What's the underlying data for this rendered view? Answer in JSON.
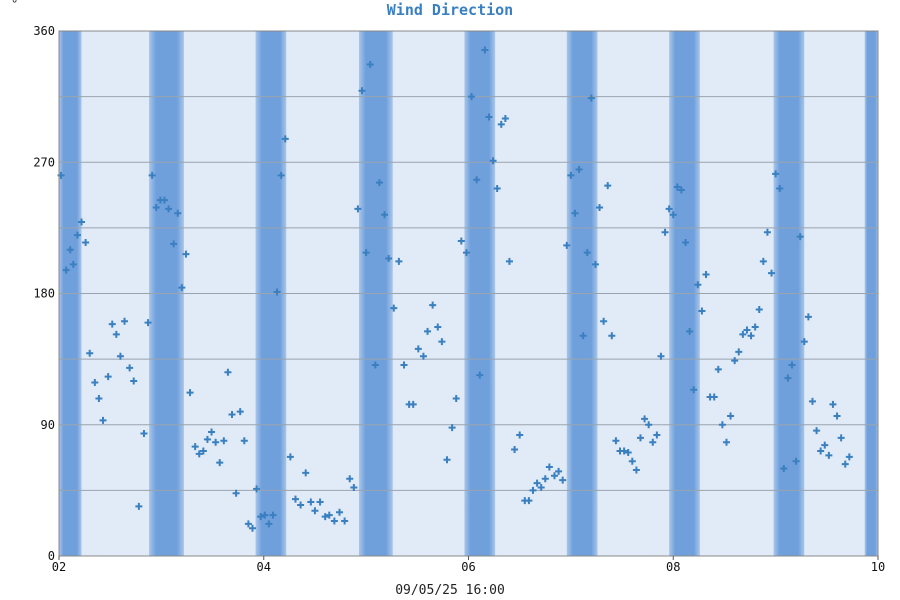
{
  "corner_mark": "°",
  "chart_data": {
    "type": "scatter",
    "title": "Wind Direction",
    "xlabel": "09/05/25 16:00",
    "ylabel": "",
    "xlim": [
      2,
      10
    ],
    "ylim": [
      0,
      360
    ],
    "x_tick_labels": [
      "02",
      "04",
      "06",
      "08",
      "10"
    ],
    "x_tick_values": [
      2,
      4,
      6,
      8,
      10
    ],
    "y_tick_labels": [
      "0",
      "90",
      "180",
      "270",
      "360"
    ],
    "y_tick_values": [
      0,
      90,
      180,
      270,
      360
    ],
    "y_gridlines": [
      45,
      90,
      135,
      180,
      225,
      270,
      315
    ],
    "grid": true,
    "marker": "+",
    "colors": {
      "background": "#e0ebf7",
      "night_band": "#6fa0dc",
      "marker": "#3a7fc0",
      "grid": "#9aa4ae",
      "title": "#3a7fc0"
    },
    "night_bands": [
      [
        1.97,
        2.22
      ],
      [
        2.88,
        3.22
      ],
      [
        3.92,
        4.22
      ],
      [
        4.93,
        5.26
      ],
      [
        5.96,
        6.26
      ],
      [
        6.96,
        7.26
      ],
      [
        7.96,
        8.26
      ],
      [
        8.98,
        9.28
      ],
      [
        9.87,
        10.02
      ]
    ],
    "series": [
      {
        "values": [
          [
            2.02,
            261
          ],
          [
            2.07,
            196
          ],
          [
            2.11,
            210
          ],
          [
            2.14,
            200
          ],
          [
            2.18,
            220
          ],
          [
            2.22,
            229
          ],
          [
            2.26,
            215
          ],
          [
            2.3,
            139
          ],
          [
            2.35,
            119
          ],
          [
            2.39,
            108
          ],
          [
            2.43,
            93
          ],
          [
            2.48,
            123
          ],
          [
            2.52,
            159
          ],
          [
            2.56,
            152
          ],
          [
            2.6,
            137
          ],
          [
            2.64,
            161
          ],
          [
            2.69,
            129
          ],
          [
            2.73,
            120
          ],
          [
            2.78,
            34
          ],
          [
            2.83,
            84
          ],
          [
            2.87,
            160
          ],
          [
            2.91,
            261
          ],
          [
            2.95,
            239
          ],
          [
            2.99,
            244
          ],
          [
            3.03,
            244
          ],
          [
            3.07,
            238
          ],
          [
            3.12,
            214
          ],
          [
            3.16,
            235
          ],
          [
            3.2,
            184
          ],
          [
            3.24,
            207
          ],
          [
            3.28,
            112
          ],
          [
            3.33,
            75
          ],
          [
            3.37,
            70
          ],
          [
            3.41,
            72
          ],
          [
            3.45,
            80
          ],
          [
            3.49,
            85
          ],
          [
            3.53,
            78
          ],
          [
            3.57,
            64
          ],
          [
            3.61,
            79
          ],
          [
            3.65,
            126
          ],
          [
            3.69,
            97
          ],
          [
            3.73,
            43
          ],
          [
            3.77,
            99
          ],
          [
            3.81,
            79
          ],
          [
            3.85,
            22
          ],
          [
            3.89,
            19
          ],
          [
            3.93,
            46
          ],
          [
            3.97,
            27
          ],
          [
            4.01,
            28
          ],
          [
            4.05,
            22
          ],
          [
            4.09,
            28
          ],
          [
            4.13,
            181
          ],
          [
            4.17,
            261
          ],
          [
            4.21,
            286
          ],
          [
            4.26,
            68
          ],
          [
            4.31,
            39
          ],
          [
            4.36,
            35
          ],
          [
            4.41,
            57
          ],
          [
            4.46,
            37
          ],
          [
            4.5,
            31
          ],
          [
            4.55,
            37
          ],
          [
            4.6,
            27
          ],
          [
            4.64,
            28
          ],
          [
            4.69,
            24
          ],
          [
            4.74,
            30
          ],
          [
            4.79,
            24
          ],
          [
            4.84,
            53
          ],
          [
            4.88,
            47
          ],
          [
            4.92,
            238
          ],
          [
            4.96,
            319
          ],
          [
            5.0,
            208
          ],
          [
            5.04,
            337
          ],
          [
            5.09,
            131
          ],
          [
            5.13,
            256
          ],
          [
            5.18,
            234
          ],
          [
            5.22,
            204
          ],
          [
            5.27,
            170
          ],
          [
            5.32,
            202
          ],
          [
            5.37,
            131
          ],
          [
            5.42,
            104
          ],
          [
            5.46,
            104
          ],
          [
            5.51,
            142
          ],
          [
            5.56,
            137
          ],
          [
            5.6,
            154
          ],
          [
            5.65,
            172
          ],
          [
            5.7,
            157
          ],
          [
            5.74,
            147
          ],
          [
            5.79,
            66
          ],
          [
            5.84,
            88
          ],
          [
            5.88,
            108
          ],
          [
            5.93,
            216
          ],
          [
            5.98,
            208
          ],
          [
            6.03,
            315
          ],
          [
            6.08,
            258
          ],
          [
            6.11,
            124
          ],
          [
            6.16,
            347
          ],
          [
            6.2,
            301
          ],
          [
            6.24,
            271
          ],
          [
            6.28,
            252
          ],
          [
            6.32,
            296
          ],
          [
            6.36,
            300
          ],
          [
            6.4,
            202
          ],
          [
            6.45,
            73
          ],
          [
            6.5,
            83
          ],
          [
            6.55,
            38
          ],
          [
            6.59,
            38
          ],
          [
            6.63,
            45
          ],
          [
            6.67,
            50
          ],
          [
            6.71,
            47
          ],
          [
            6.75,
            53
          ],
          [
            6.79,
            61
          ],
          [
            6.84,
            55
          ],
          [
            6.88,
            58
          ],
          [
            6.92,
            52
          ],
          [
            6.96,
            213
          ],
          [
            7.0,
            261
          ],
          [
            7.04,
            235
          ],
          [
            7.08,
            265
          ],
          [
            7.12,
            151
          ],
          [
            7.16,
            208
          ],
          [
            7.2,
            314
          ],
          [
            7.24,
            200
          ],
          [
            7.28,
            239
          ],
          [
            7.32,
            161
          ],
          [
            7.36,
            254
          ],
          [
            7.4,
            151
          ],
          [
            7.44,
            79
          ],
          [
            7.48,
            72
          ],
          [
            7.52,
            72
          ],
          [
            7.56,
            71
          ],
          [
            7.6,
            65
          ],
          [
            7.64,
            59
          ],
          [
            7.68,
            81
          ],
          [
            7.72,
            94
          ],
          [
            7.76,
            90
          ],
          [
            7.8,
            78
          ],
          [
            7.84,
            83
          ],
          [
            7.88,
            137
          ],
          [
            7.92,
            222
          ],
          [
            7.96,
            238
          ],
          [
            8.0,
            234
          ],
          [
            8.04,
            253
          ],
          [
            8.08,
            251
          ],
          [
            8.12,
            215
          ],
          [
            8.16,
            154
          ],
          [
            8.2,
            114
          ],
          [
            8.24,
            186
          ],
          [
            8.28,
            168
          ],
          [
            8.32,
            193
          ],
          [
            8.36,
            109
          ],
          [
            8.4,
            109
          ],
          [
            8.44,
            128
          ],
          [
            8.48,
            90
          ],
          [
            8.52,
            78
          ],
          [
            8.56,
            96
          ],
          [
            8.6,
            134
          ],
          [
            8.64,
            140
          ],
          [
            8.68,
            152
          ],
          [
            8.72,
            155
          ],
          [
            8.76,
            151
          ],
          [
            8.8,
            157
          ],
          [
            8.84,
            169
          ],
          [
            8.88,
            202
          ],
          [
            8.92,
            222
          ],
          [
            8.96,
            194
          ],
          [
            9.0,
            262
          ],
          [
            9.04,
            252
          ],
          [
            9.08,
            60
          ],
          [
            9.12,
            122
          ],
          [
            9.16,
            131
          ],
          [
            9.2,
            65
          ],
          [
            9.24,
            219
          ],
          [
            9.28,
            147
          ],
          [
            9.32,
            164
          ],
          [
            9.36,
            106
          ],
          [
            9.4,
            86
          ],
          [
            9.44,
            72
          ],
          [
            9.48,
            76
          ],
          [
            9.52,
            69
          ],
          [
            9.56,
            104
          ],
          [
            9.6,
            96
          ],
          [
            9.64,
            81
          ],
          [
            9.68,
            63
          ],
          [
            9.72,
            68
          ]
        ]
      }
    ]
  },
  "footer_text": "09/05/25 16:00"
}
